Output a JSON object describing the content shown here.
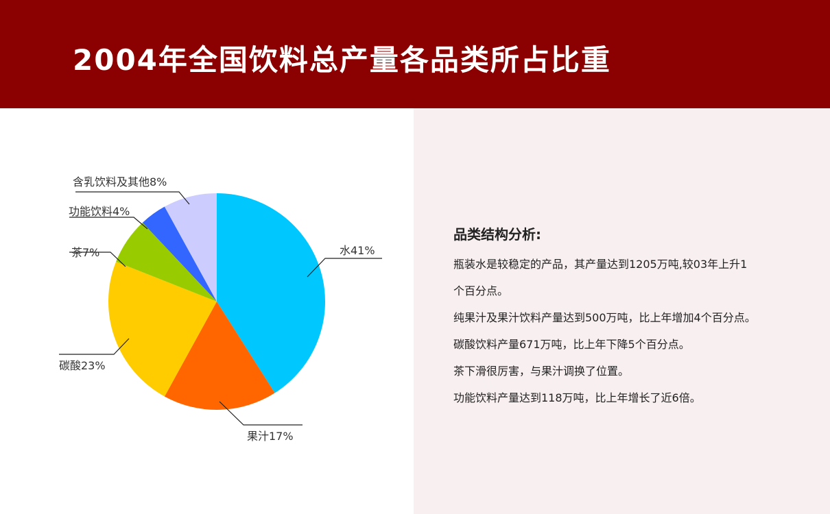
{
  "header": {
    "title": "2004年全国饮料总产量各品类所占比重"
  },
  "chart_data": {
    "type": "pie",
    "title": "2004年全国饮料总产量各品类所占比重",
    "slices": [
      {
        "label": "水",
        "value": 41,
        "display": "水41%",
        "color": "#00c8ff"
      },
      {
        "label": "果汁",
        "value": 17,
        "display": "果汁17%",
        "color": "#ff6600"
      },
      {
        "label": "碳酸",
        "value": 23,
        "display": "碳酸23%",
        "color": "#ffcc00"
      },
      {
        "label": "茶",
        "value": 7,
        "display": "茶7%",
        "color": "#99cc00"
      },
      {
        "label": "功能饮料",
        "value": 4,
        "display": "功能饮料4%",
        "color": "#3366ff"
      },
      {
        "label": "含乳饮料及其他",
        "value": 8,
        "display": "含乳饮料及其他8%",
        "color": "#ccccff"
      }
    ]
  },
  "analysis": {
    "title": "品类结构分析:",
    "lines": [
      "瓶装水是较稳定的产品，其产量达到1205万吨,较03年上升1",
      "个百分点。",
      "纯果汁及果汁饮料产量达到500万吨，比上年增加4个百分点。",
      "碳酸饮料产量671万吨，比上年下降5个百分点。",
      "茶下滑很厉害，与果汁调换了位置。",
      "功能饮料产量达到118万吨，比上年增长了近6倍。"
    ]
  }
}
